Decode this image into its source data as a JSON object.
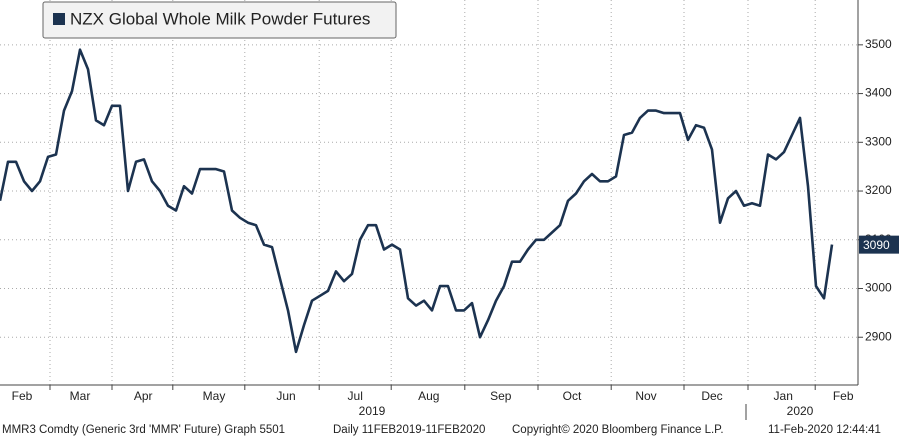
{
  "chart_data": {
    "type": "line",
    "series": [
      {
        "name": "NZX Global Whole Milk Powder Futures",
        "color": "#1c3350",
        "values": [
          3180,
          3260,
          3260,
          3220,
          3200,
          3220,
          3270,
          3275,
          3365,
          3405,
          3490,
          3450,
          3345,
          3335,
          3375,
          3375,
          3200,
          3260,
          3265,
          3220,
          3200,
          3170,
          3160,
          3210,
          3195,
          3245,
          3245,
          3245,
          3240,
          3160,
          3145,
          3135,
          3130,
          3090,
          3085,
          3020,
          2955,
          2870,
          2925,
          2975,
          2985,
          2995,
          3035,
          3015,
          3030,
          3100,
          3130,
          3130,
          3080,
          3090,
          3080,
          2980,
          2965,
          2975,
          2955,
          3005,
          3005,
          2955,
          2955,
          2970,
          2900,
          2935,
          2975,
          3005,
          3055,
          3055,
          3080,
          3100,
          3100,
          3115,
          3130,
          3180,
          3195,
          3220,
          3235,
          3220,
          3220,
          3230,
          3315,
          3320,
          3350,
          3365,
          3365,
          3360,
          3360,
          3360,
          3305,
          3335,
          3330,
          3285,
          3135,
          3185,
          3200,
          3170,
          3175,
          3170,
          3275,
          3265,
          3280,
          3315,
          3350,
          3210,
          3005,
          2980,
          3090
        ]
      }
    ],
    "xlim": [
      0,
      107.25
    ],
    "xgrid": [
      6.25,
      14,
      21.6,
      30.6,
      39.9,
      48.9,
      58.1,
      67.25,
      76.4,
      85.5,
      93.5,
      101.9
    ],
    "xticks": [
      {
        "value": 2.75,
        "label": "Feb"
      },
      {
        "value": 10,
        "label": "Mar"
      },
      {
        "value": 17.9,
        "label": "Apr"
      },
      {
        "value": 26.75,
        "label": "May"
      },
      {
        "value": 35.75,
        "label": "Jun"
      },
      {
        "value": 44.4,
        "label": "Jul"
      },
      {
        "value": 53.6,
        "label": "Aug"
      },
      {
        "value": 62.6,
        "label": "Sep"
      },
      {
        "value": 71.5,
        "label": "Oct"
      },
      {
        "value": 80.75,
        "label": "Nov"
      },
      {
        "value": 89,
        "label": "Dec"
      },
      {
        "value": 97.9,
        "label": "Jan"
      },
      {
        "value": 105.4,
        "label": "Feb"
      }
    ],
    "year_ticks": [
      {
        "value": 46.5,
        "label": "2019"
      },
      {
        "value": 100,
        "label": "2020"
      }
    ],
    "ylim": [
      2802,
      3592
    ],
    "yticks": [
      2900,
      3000,
      3100,
      3200,
      3300,
      3400,
      3500
    ],
    "grid": true,
    "legend": "upper left",
    "footer": [
      "MMR3 Comdty (Generic 3rd 'MMR' Future) Graph 5501",
      "Daily 11FEB2019-11FEB2020",
      "Copyright© 2020 Bloomberg Finance L.P.",
      "11-Feb-2020 12:44:41"
    ]
  }
}
